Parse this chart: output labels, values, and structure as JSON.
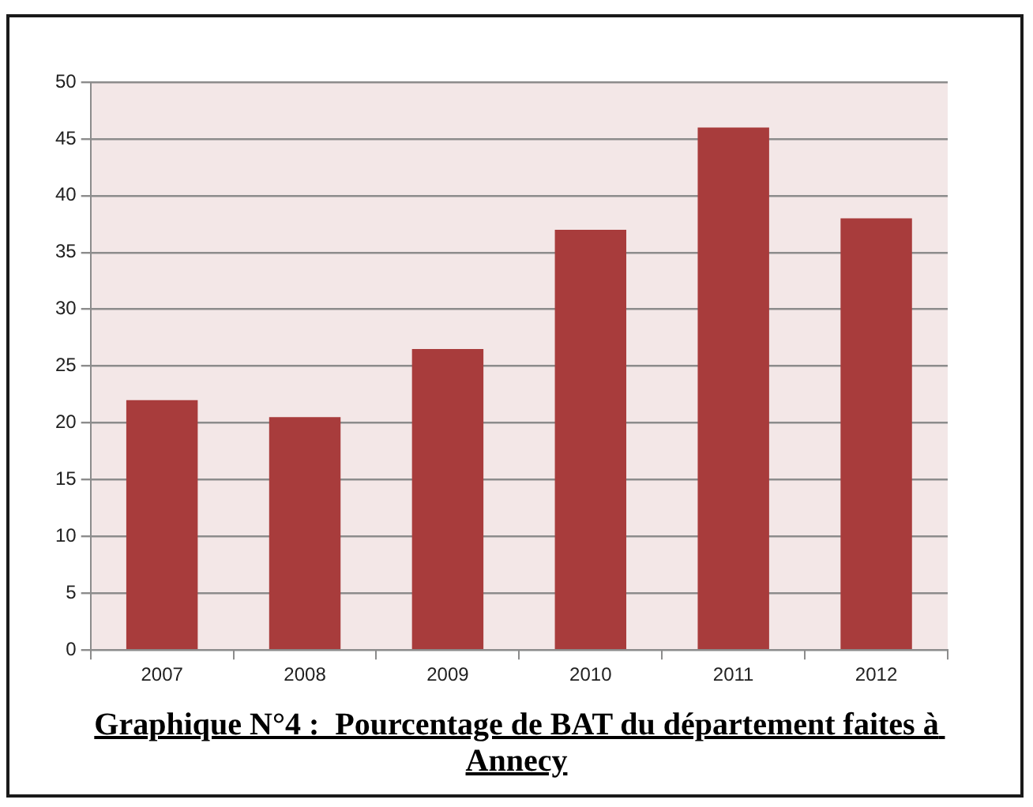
{
  "chart_data": {
    "type": "bar",
    "title": "Graphique N°4 :  Pourcentage de BAT du département faites à Annecy",
    "categories": [
      "2007",
      "2008",
      "2009",
      "2010",
      "2011",
      "2012"
    ],
    "values": [
      22,
      20.5,
      26.5,
      37,
      46,
      38
    ],
    "color": "#a83c3c",
    "ylim": [
      0,
      50
    ],
    "yticks": [
      0,
      5,
      10,
      15,
      20,
      25,
      30,
      35,
      40,
      45,
      50
    ],
    "grid": "y"
  }
}
